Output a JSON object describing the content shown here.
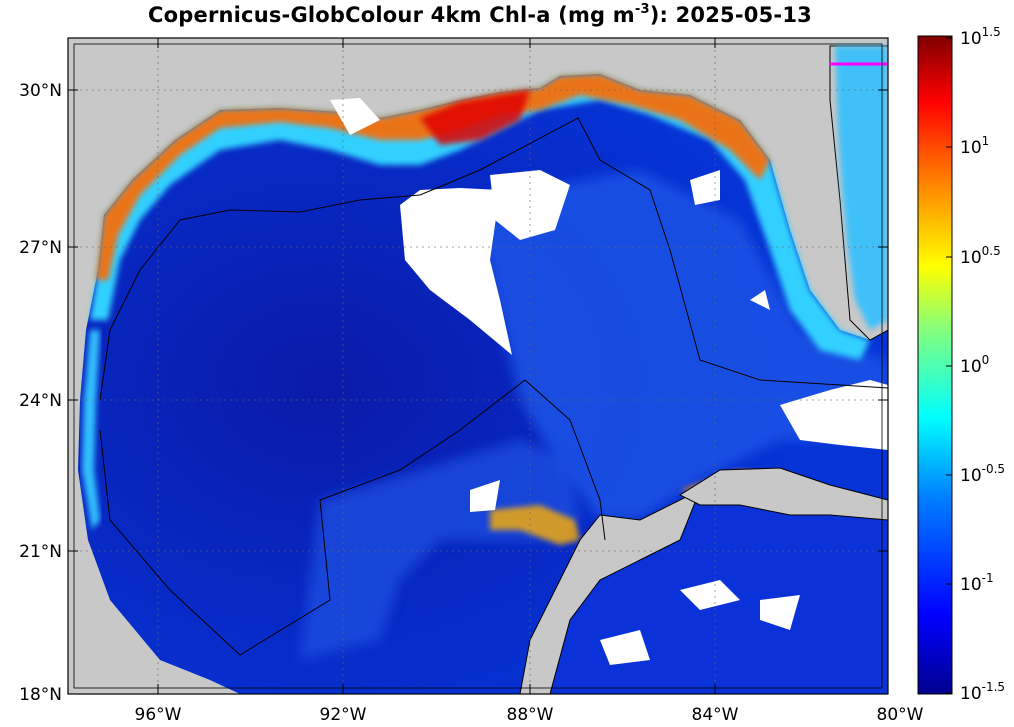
{
  "title": {
    "prefix": "Copernicus-GlobColour 4km Chl-a (mg m",
    "sup": "-3",
    "suffix": "): 2025-05-13"
  },
  "map": {
    "lat_range": [
      18,
      31
    ],
    "lon_range": [
      -98,
      -80
    ],
    "lat_ticks": [
      {
        "value": 30,
        "label": "30°N"
      },
      {
        "value": 27,
        "label": "27°N"
      },
      {
        "value": 24,
        "label": "24°N"
      },
      {
        "value": 21,
        "label": "21°N"
      },
      {
        "value": 18,
        "label": "18°N"
      }
    ],
    "lon_ticks": [
      {
        "value": -96,
        "label": "96°W"
      },
      {
        "value": -92,
        "label": "92°W"
      },
      {
        "value": -88,
        "label": "88°W"
      },
      {
        "value": -84,
        "label": "84°W"
      },
      {
        "value": -80,
        "label": "80°W"
      }
    ],
    "land_color": "#c8c8c8",
    "no_data_color": "#ffffff",
    "grid": "dotted"
  },
  "colorbar": {
    "scale": "log",
    "range": [
      -1.5,
      1.5
    ],
    "ticks": [
      {
        "base": "10",
        "exp": "1.5"
      },
      {
        "base": "10",
        "exp": "1"
      },
      {
        "base": "10",
        "exp": "0.5"
      },
      {
        "base": "10",
        "exp": "0"
      },
      {
        "base": "10",
        "exp": "-0.5"
      },
      {
        "base": "10",
        "exp": "-1"
      },
      {
        "base": "10",
        "exp": "-1.5"
      }
    ],
    "colormap": [
      "#00008f",
      "#0000ff",
      "#0080ff",
      "#00ffff",
      "#80ff80",
      "#ffff00",
      "#ff8000",
      "#ff0000",
      "#800000"
    ]
  }
}
